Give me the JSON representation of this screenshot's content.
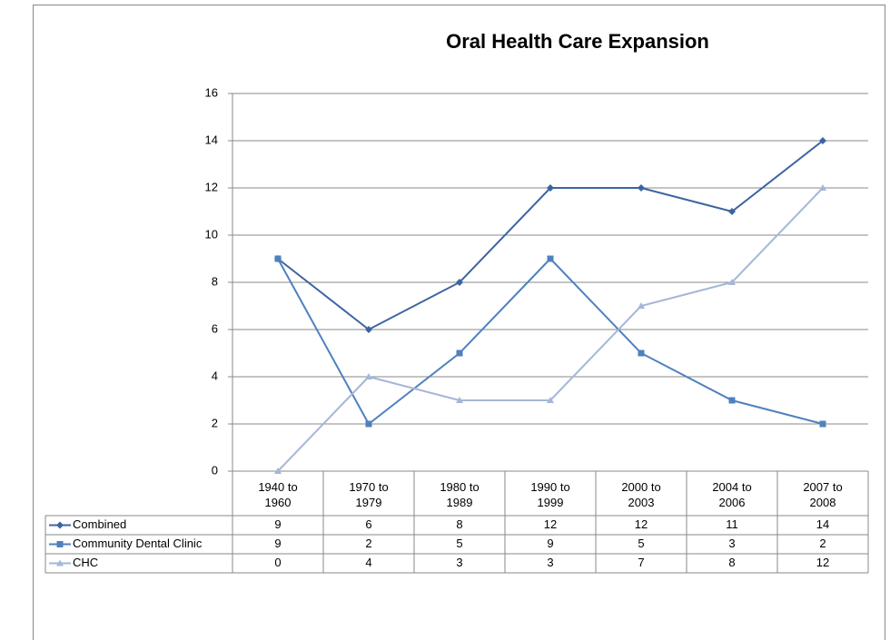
{
  "chart_data": {
    "type": "line",
    "title": "Oral Health Care Expansion",
    "categories": [
      "1940 to 1960",
      "1970 to 1979",
      "1980 to 1989",
      "1990 to 1999",
      "2000 to 2003",
      "2004 to 2006",
      "2007 to 2008"
    ],
    "series": [
      {
        "name": "Combined",
        "color": "#3c64a0",
        "marker": "diamond",
        "values": [
          9,
          6,
          8,
          12,
          12,
          11,
          14
        ]
      },
      {
        "name": "Community Dental Clinic",
        "color": "#4f81bd",
        "marker": "square",
        "values": [
          9,
          2,
          5,
          9,
          5,
          3,
          2
        ]
      },
      {
        "name": "CHC",
        "color": "#a5b6d8",
        "marker": "triangle",
        "values": [
          0,
          4,
          3,
          3,
          7,
          8,
          12
        ]
      }
    ],
    "ylim": [
      0,
      16
    ],
    "yticks": [
      0,
      2,
      4,
      6,
      8,
      10,
      12,
      14,
      16
    ],
    "grid": true,
    "data_table": true
  }
}
